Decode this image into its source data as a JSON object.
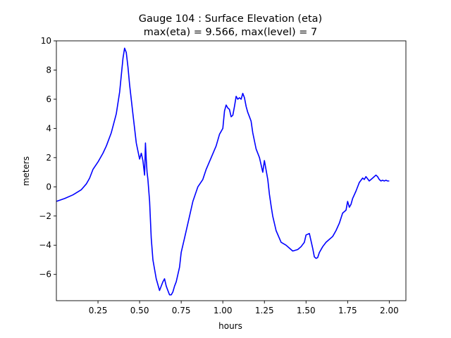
{
  "chart_data": {
    "type": "line",
    "title_line1": "Gauge 104 : Surface Elevation (eta)",
    "title_line2": "max(eta) =   9.566,    max(level) = 7",
    "xlabel": "hours",
    "ylabel": "meters",
    "xlim": [
      0.0,
      2.1
    ],
    "ylim": [
      -7.8,
      10.0
    ],
    "xticks": [
      0.25,
      0.5,
      0.75,
      1.0,
      1.25,
      1.5,
      1.75,
      2.0
    ],
    "xtick_labels": [
      "0.25",
      "0.50",
      "0.75",
      "1.00",
      "1.25",
      "1.50",
      "1.75",
      "2.00"
    ],
    "yticks": [
      -6,
      -4,
      -2,
      0,
      2,
      4,
      6,
      8,
      10
    ],
    "ytick_labels": [
      "−6",
      "−4",
      "−2",
      "0",
      "2",
      "4",
      "6",
      "8",
      "10"
    ],
    "grid": false,
    "line_color": "#0000ff",
    "series": [
      {
        "name": "",
        "x": [
          0.0,
          0.05,
          0.1,
          0.15,
          0.18,
          0.19,
          0.2,
          0.22,
          0.25,
          0.28,
          0.3,
          0.33,
          0.36,
          0.38,
          0.4,
          0.41,
          0.42,
          0.43,
          0.44,
          0.46,
          0.48,
          0.5,
          0.51,
          0.52,
          0.53,
          0.535,
          0.54,
          0.545,
          0.55,
          0.56,
          0.57,
          0.58,
          0.6,
          0.62,
          0.64,
          0.65,
          0.66,
          0.67,
          0.68,
          0.69,
          0.7,
          0.71,
          0.72,
          0.74,
          0.75,
          0.77,
          0.8,
          0.82,
          0.85,
          0.88,
          0.9,
          0.93,
          0.96,
          0.98,
          1.0,
          1.01,
          1.02,
          1.03,
          1.04,
          1.05,
          1.06,
          1.07,
          1.08,
          1.09,
          1.1,
          1.11,
          1.12,
          1.13,
          1.14,
          1.15,
          1.16,
          1.17,
          1.18,
          1.2,
          1.22,
          1.24,
          1.25,
          1.27,
          1.28,
          1.29,
          1.3,
          1.32,
          1.35,
          1.38,
          1.4,
          1.42,
          1.45,
          1.47,
          1.49,
          1.5,
          1.52,
          1.54,
          1.55,
          1.56,
          1.57,
          1.58,
          1.6,
          1.62,
          1.64,
          1.66,
          1.68,
          1.7,
          1.72,
          1.74,
          1.75,
          1.76,
          1.77,
          1.78,
          1.8,
          1.82,
          1.84,
          1.85,
          1.86,
          1.88,
          1.9,
          1.92,
          1.93,
          1.94,
          1.95,
          1.96,
          1.97,
          1.98,
          1.99,
          2.0
        ],
        "y": [
          -1.0,
          -0.8,
          -0.55,
          -0.2,
          0.2,
          0.4,
          0.6,
          1.2,
          1.7,
          2.3,
          2.8,
          3.7,
          5.0,
          6.5,
          8.8,
          9.5,
          9.2,
          8.2,
          7.0,
          5.0,
          3.0,
          1.9,
          2.3,
          1.8,
          0.8,
          3.0,
          1.9,
          1.0,
          0.5,
          -1.0,
          -3.5,
          -5.0,
          -6.3,
          -7.1,
          -6.5,
          -6.3,
          -6.8,
          -7.1,
          -7.4,
          -7.4,
          -7.2,
          -6.8,
          -6.5,
          -5.5,
          -4.5,
          -3.5,
          -2.0,
          -1.0,
          0.0,
          0.5,
          1.2,
          2.0,
          2.8,
          3.6,
          4.0,
          5.2,
          5.6,
          5.4,
          5.3,
          4.8,
          4.9,
          5.5,
          6.2,
          6.0,
          6.1,
          6.0,
          6.4,
          6.1,
          5.5,
          5.1,
          4.8,
          4.5,
          3.7,
          2.6,
          2.0,
          1.0,
          1.8,
          0.5,
          -0.5,
          -1.3,
          -2.0,
          -3.0,
          -3.8,
          -4.0,
          -4.2,
          -4.4,
          -4.3,
          -4.1,
          -3.8,
          -3.3,
          -3.2,
          -4.2,
          -4.8,
          -4.9,
          -4.85,
          -4.5,
          -4.1,
          -3.8,
          -3.6,
          -3.4,
          -3.0,
          -2.5,
          -1.8,
          -1.6,
          -1.0,
          -1.4,
          -1.2,
          -0.8,
          -0.3,
          0.3,
          0.6,
          0.5,
          0.7,
          0.4,
          0.6,
          0.8,
          0.7,
          0.5,
          0.4,
          0.45,
          0.4,
          0.45,
          0.4,
          0.4
        ]
      }
    ]
  }
}
